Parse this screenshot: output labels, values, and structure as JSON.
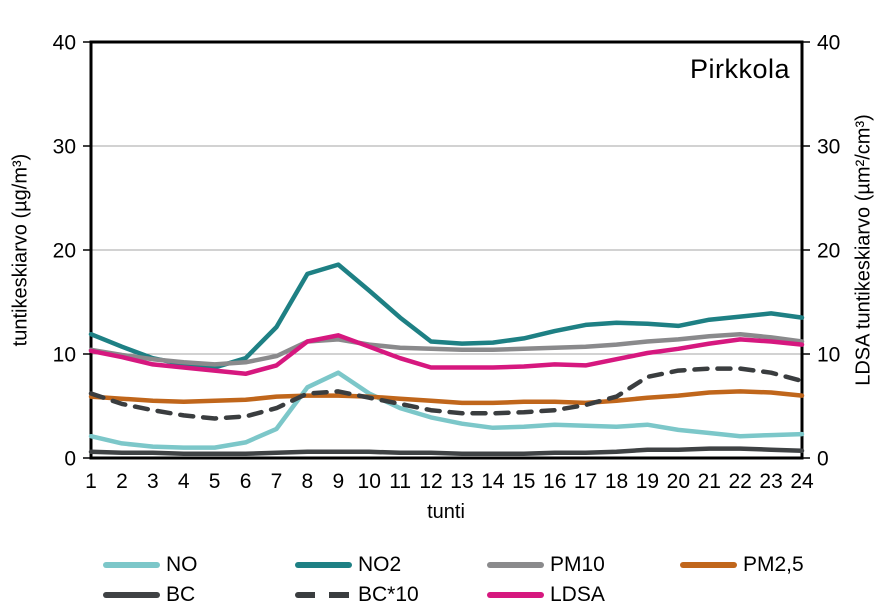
{
  "chart": {
    "title": "Pirkkola",
    "left_axis_title": "tuntikeskiarvo (µg/m³)",
    "right_axis_title": "LDSA tuntikeskiarvo (µm²/cm³)",
    "x_axis_title": "tunti"
  },
  "chart_data": {
    "type": "line",
    "title": "Pirkkola",
    "xlabel": "tunti",
    "ylabel_left": "tuntikeskiarvo (µg/m³)",
    "ylabel_right": "LDSA tuntikeskiarvo (µm²/cm³)",
    "x": [
      1,
      2,
      3,
      4,
      5,
      6,
      7,
      8,
      9,
      10,
      11,
      12,
      13,
      14,
      15,
      16,
      17,
      18,
      19,
      20,
      21,
      22,
      23,
      24
    ],
    "ylim": [
      0,
      40
    ],
    "yticks": [
      0,
      10,
      20,
      30,
      40
    ],
    "grid": "horizontal",
    "grid_color": "#A6A6A6",
    "axis_color": "#000000",
    "legend_position": "bottom",
    "series": [
      {
        "name": "NO",
        "color": "#7CC7C9",
        "style": "solid",
        "axis": "left",
        "values": [
          2.1,
          1.4,
          1.1,
          1.0,
          1.0,
          1.5,
          2.8,
          6.8,
          8.2,
          6.2,
          4.8,
          3.9,
          3.3,
          2.9,
          3.0,
          3.2,
          3.1,
          3.0,
          3.2,
          2.7,
          2.4,
          2.1,
          2.2,
          2.3
        ]
      },
      {
        "name": "NO2",
        "color": "#1E8084",
        "style": "solid",
        "axis": "left",
        "values": [
          11.9,
          10.7,
          9.6,
          9.0,
          8.7,
          9.6,
          12.6,
          17.7,
          18.6,
          16.1,
          13.5,
          11.2,
          11.0,
          11.1,
          11.5,
          12.2,
          12.8,
          13.0,
          12.9,
          12.7,
          13.3,
          13.6,
          13.9,
          13.5
        ]
      },
      {
        "name": "PM10",
        "color": "#8A8A8C",
        "style": "solid",
        "axis": "left",
        "values": [
          10.4,
          9.9,
          9.5,
          9.2,
          9.0,
          9.2,
          9.8,
          11.2,
          11.4,
          10.9,
          10.6,
          10.5,
          10.4,
          10.4,
          10.5,
          10.6,
          10.7,
          10.9,
          11.2,
          11.4,
          11.7,
          11.9,
          11.6,
          11.2
        ]
      },
      {
        "name": "PM2,5",
        "color": "#C0661B",
        "style": "solid",
        "axis": "left",
        "values": [
          5.9,
          5.7,
          5.5,
          5.4,
          5.5,
          5.6,
          5.9,
          6.0,
          6.0,
          5.9,
          5.7,
          5.5,
          5.3,
          5.3,
          5.4,
          5.4,
          5.3,
          5.5,
          5.8,
          6.0,
          6.3,
          6.4,
          6.3,
          6.0
        ]
      },
      {
        "name": "BC",
        "color": "#3F4244",
        "style": "solid",
        "axis": "left",
        "values": [
          0.6,
          0.5,
          0.5,
          0.4,
          0.4,
          0.4,
          0.5,
          0.6,
          0.6,
          0.6,
          0.5,
          0.5,
          0.4,
          0.4,
          0.4,
          0.5,
          0.5,
          0.6,
          0.8,
          0.8,
          0.9,
          0.9,
          0.8,
          0.7
        ]
      },
      {
        "name": "BC*10",
        "color": "#3A3D3F",
        "style": "dashed",
        "axis": "left",
        "values": [
          6.2,
          5.2,
          4.6,
          4.1,
          3.8,
          4.0,
          4.8,
          6.2,
          6.4,
          5.8,
          5.2,
          4.6,
          4.3,
          4.3,
          4.4,
          4.6,
          5.1,
          5.9,
          7.8,
          8.4,
          8.6,
          8.6,
          8.2,
          7.4
        ]
      },
      {
        "name": "LDSA",
        "color": "#D6187F",
        "style": "solid",
        "axis": "right",
        "values": [
          10.3,
          9.7,
          9.0,
          8.7,
          8.4,
          8.1,
          8.9,
          11.2,
          11.8,
          10.7,
          9.6,
          8.7,
          8.7,
          8.7,
          8.8,
          9.0,
          8.9,
          9.5,
          10.1,
          10.5,
          11.0,
          11.4,
          11.2,
          10.9
        ]
      }
    ]
  }
}
